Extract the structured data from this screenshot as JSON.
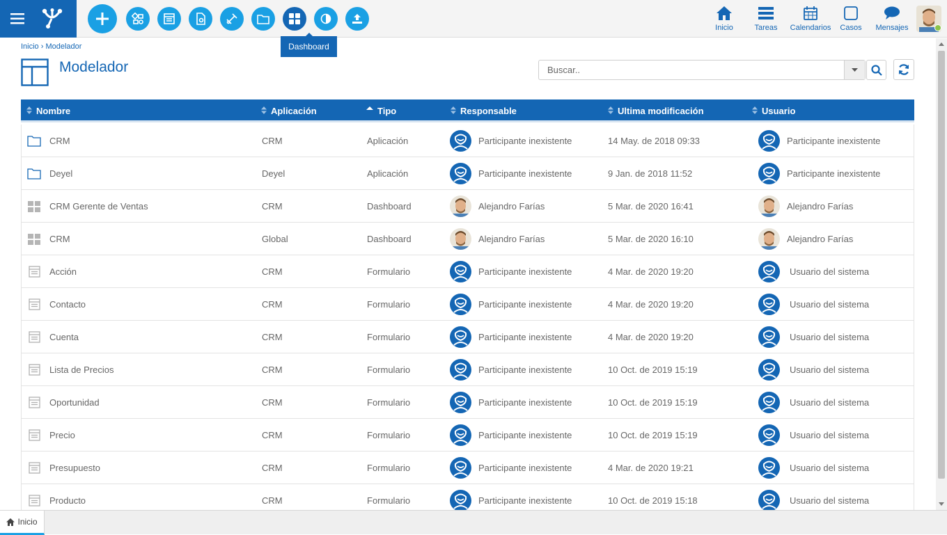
{
  "toolbar": {
    "tooltip": "Dashboard",
    "buttons": [
      "plus-icon",
      "process-icon",
      "form-icon",
      "document-settings-icon",
      "integration-icon",
      "folder-icon",
      "dashboard-icon",
      "contrast-icon",
      "upload-icon"
    ]
  },
  "nav": {
    "inicio": "Inicio",
    "tareas": "Tareas",
    "calendarios": "Calendarios",
    "casos": "Casos",
    "mensajes": "Mensajes"
  },
  "breadcrumb": "Inicio › Modelador",
  "page": {
    "title": "Modelador"
  },
  "search": {
    "placeholder": "Buscar.."
  },
  "table": {
    "headers": {
      "nombre": "Nombre",
      "aplicacion": "Aplicación",
      "tipo": "Tipo",
      "responsable": "Responsable",
      "ultima": "Ultima modificación",
      "usuario": "Usuario"
    },
    "rows": [
      {
        "icon": "folder-icon",
        "nombre": "CRM",
        "aplicacion": "CRM",
        "tipo": "Aplicación",
        "responsable": "Participante inexistente",
        "resp_avatar": "generic",
        "fecha": "14 May. de 2018 09:33",
        "usuario": "Participante inexistente",
        "usr_avatar": "generic"
      },
      {
        "icon": "folder-icon",
        "nombre": "Deyel",
        "aplicacion": "Deyel",
        "tipo": "Aplicación",
        "responsable": "Participante inexistente",
        "resp_avatar": "generic",
        "fecha": "9 Jan. de 2018 11:52",
        "usuario": "Participante inexistente",
        "usr_avatar": "generic"
      },
      {
        "icon": "dashboard-icon",
        "nombre": "CRM Gerente de Ventas",
        "aplicacion": "CRM",
        "tipo": "Dashboard",
        "responsable": "Alejandro Farías",
        "resp_avatar": "photo",
        "fecha": "5 Mar. de 2020 16:41",
        "usuario": "Alejandro Farías",
        "usr_avatar": "photo"
      },
      {
        "icon": "dashboard-icon",
        "nombre": "CRM",
        "aplicacion": "Global",
        "tipo": "Dashboard",
        "responsable": "Alejandro Farías",
        "resp_avatar": "photo",
        "fecha": "5 Mar. de 2020 16:10",
        "usuario": "Alejandro Farías",
        "usr_avatar": "photo"
      },
      {
        "icon": "form-icon",
        "nombre": "Acción",
        "aplicacion": "CRM",
        "tipo": "Formulario",
        "responsable": "Participante inexistente",
        "resp_avatar": "generic",
        "fecha": "4 Mar. de 2020 19:20",
        "usuario": "Usuario del sistema",
        "usr_avatar": "generic"
      },
      {
        "icon": "form-icon",
        "nombre": "Contacto",
        "aplicacion": "CRM",
        "tipo": "Formulario",
        "responsable": "Participante inexistente",
        "resp_avatar": "generic",
        "fecha": "4 Mar. de 2020 19:20",
        "usuario": "Usuario del sistema",
        "usr_avatar": "generic"
      },
      {
        "icon": "form-icon",
        "nombre": "Cuenta",
        "aplicacion": "CRM",
        "tipo": "Formulario",
        "responsable": "Participante inexistente",
        "resp_avatar": "generic",
        "fecha": "4 Mar. de 2020 19:20",
        "usuario": "Usuario del sistema",
        "usr_avatar": "generic"
      },
      {
        "icon": "form-icon",
        "nombre": "Lista de Precios",
        "aplicacion": "CRM",
        "tipo": "Formulario",
        "responsable": "Participante inexistente",
        "resp_avatar": "generic",
        "fecha": "10 Oct. de 2019 15:19",
        "usuario": "Usuario del sistema",
        "usr_avatar": "generic"
      },
      {
        "icon": "form-icon",
        "nombre": "Oportunidad",
        "aplicacion": "CRM",
        "tipo": "Formulario",
        "responsable": "Participante inexistente",
        "resp_avatar": "generic",
        "fecha": "10 Oct. de 2019 15:19",
        "usuario": "Usuario del sistema",
        "usr_avatar": "generic"
      },
      {
        "icon": "form-icon",
        "nombre": "Precio",
        "aplicacion": "CRM",
        "tipo": "Formulario",
        "responsable": "Participante inexistente",
        "resp_avatar": "generic",
        "fecha": "10 Oct. de 2019 15:19",
        "usuario": "Usuario del sistema",
        "usr_avatar": "generic"
      },
      {
        "icon": "form-icon",
        "nombre": "Presupuesto",
        "aplicacion": "CRM",
        "tipo": "Formulario",
        "responsable": "Participante inexistente",
        "resp_avatar": "generic",
        "fecha": "4 Mar. de 2020 19:21",
        "usuario": "Usuario del sistema",
        "usr_avatar": "generic"
      },
      {
        "icon": "form-icon",
        "nombre": "Producto",
        "aplicacion": "CRM",
        "tipo": "Formulario",
        "responsable": "Participante inexistente",
        "resp_avatar": "generic",
        "fecha": "10 Oct. de 2019 15:18",
        "usuario": "Usuario del sistema",
        "usr_avatar": "generic"
      }
    ]
  },
  "footer": {
    "tab": "Inicio"
  },
  "colors": {
    "primary": "#1466b4",
    "accent": "#1aa0e4"
  }
}
